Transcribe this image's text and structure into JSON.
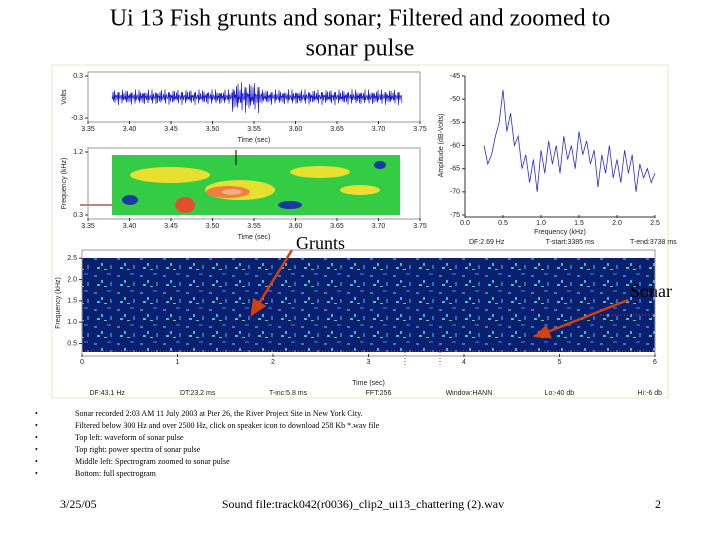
{
  "title_lines": [
    "Ui 13 Fish grunts and sonar; Filtered and zoomed to",
    "sonar pulse"
  ],
  "chart_data": [
    {
      "type": "waveform",
      "ylabel": "Volts",
      "xlabel": "Time (sec)",
      "xlim": [
        3.35,
        3.75
      ],
      "xticks": [
        3.35,
        {
          "value": 3.4,
          "label": "3.40"
        },
        3.45,
        {
          "value": 3.5,
          "label": "3.50"
        },
        3.55,
        {
          "value": 3.6,
          "label": "3.60"
        },
        3.65,
        {
          "value": 3.7,
          "label": "3.70"
        },
        3.75
      ],
      "ylim": [
        -0.3,
        0.3
      ],
      "yticks": [
        -0.3,
        0.3
      ],
      "color": "#1a1acc"
    },
    {
      "type": "spectrogram",
      "ylabel": "Frequency (kHz)",
      "xlabel": "Time (sec)",
      "xlim": [
        3.35,
        3.75
      ],
      "xticks": [
        3.35,
        {
          "value": 3.4,
          "label": "3.40"
        },
        3.45,
        {
          "value": 3.5,
          "label": "3.50"
        },
        3.55,
        {
          "value": 3.6,
          "label": "3.60"
        },
        3.65,
        {
          "value": 3.7,
          "label": "3.70"
        },
        3.75
      ],
      "ylim": [
        0.3,
        1.2
      ],
      "yticks": [
        0.3,
        1.2
      ]
    },
    {
      "type": "line",
      "ylabel": "Amplitude (dB-Volts)",
      "xlabel": "Frequency (kHz)",
      "xlim": [
        0,
        2.5
      ],
      "xticks": [
        {
          "value": 0,
          "label": "0.0"
        },
        0.5,
        {
          "value": 1,
          "label": "1.0"
        },
        1.5,
        {
          "value": 2,
          "label": "2.0"
        },
        2.5
      ],
      "ylim": [
        -75,
        -45
      ],
      "yticks": [
        -75,
        -70,
        -65,
        -60,
        -55,
        -50,
        -45
      ],
      "color": "#2a2acc",
      "x": [
        0.25,
        0.3,
        0.35,
        0.4,
        0.45,
        0.5,
        0.55,
        0.6,
        0.65,
        0.7,
        0.75,
        0.8,
        0.85,
        0.9,
        0.95,
        1.0,
        1.05,
        1.1,
        1.15,
        1.2,
        1.25,
        1.3,
        1.35,
        1.4,
        1.45,
        1.5,
        1.55,
        1.6,
        1.65,
        1.7,
        1.75,
        1.8,
        1.85,
        1.9,
        1.95,
        2.0,
        2.05,
        2.1,
        2.15,
        2.2,
        2.25,
        2.3,
        2.35,
        2.4,
        2.45,
        2.5
      ],
      "values": [
        -60,
        -64,
        -62,
        -58,
        -55,
        -48,
        -57,
        -53,
        -60,
        -58,
        -65,
        -62,
        -68,
        -63,
        -70,
        -61,
        -66,
        -59,
        -64,
        -60,
        -66,
        -58,
        -63,
        -60,
        -65,
        -57,
        -62,
        -59,
        -64,
        -61,
        -69,
        -62,
        -66,
        -60,
        -67,
        -63,
        -68,
        -61,
        -66,
        -62,
        -70,
        -64,
        -67,
        -65,
        -68,
        -66
      ],
      "footer": [
        "DF:2.69 Hz",
        "T-start:3385 ms",
        "T-end:3738 ms"
      ]
    },
    {
      "type": "spectrogram",
      "ylabel": "Frequency (kHz)",
      "xlabel": "Time (sec)",
      "xlim": [
        0,
        6
      ],
      "xticks": [
        0,
        1,
        2,
        3,
        4,
        5,
        6
      ],
      "ylim": [
        0.3,
        2.6
      ],
      "yticks": [
        0.5,
        {
          "value": 1,
          "label": "1.0"
        },
        1.5,
        {
          "value": 2,
          "label": "2.0"
        },
        2.5
      ],
      "footer": [
        "DF:43.1 Hz",
        "DT:23.2 ms",
        "T-inc:5.8 ms",
        "FFT:256",
        "Window:HANN",
        "Lo:-40 db",
        "Hi:-6 db"
      ]
    }
  ],
  "annotations": [
    "Grunts",
    "Sonar"
  ],
  "bullets": [
    "Sonar recorded 2:03 AM 11 July 2003 at Pier 26, the River Project Site in New York City.",
    "Filtered below 300 Hz and over 2500 Hz, click on speaker icon to download 258 Kb *.wav file",
    "Top left: waveform of sonar pulse",
    "Top right: power spectra of sonar pulse",
    "Middle left: Spectrogram zoomed to sonar pulse",
    "Bottom: full spectrogram"
  ],
  "footer": {
    "date": "3/25/05",
    "center": "Sound file:track042(r0036)_clip2_ui13_chattering (2).wav",
    "page": "2"
  }
}
